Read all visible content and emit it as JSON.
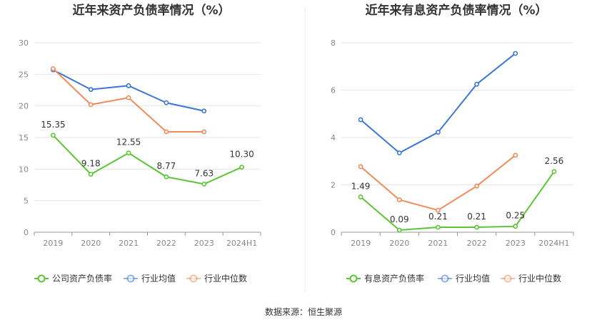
{
  "chart_data": [
    {
      "type": "line",
      "title": "近年来资产负债率情况（%）",
      "xlabel": "",
      "ylabel": "",
      "categories": [
        "2019",
        "2020",
        "2021",
        "2022",
        "2023",
        "2024H1"
      ],
      "ylim": [
        0,
        30
      ],
      "yticks": [
        "0",
        "5",
        "10",
        "15",
        "20",
        "25",
        "30"
      ],
      "grid": true,
      "legend": "bottom",
      "series": [
        {
          "name": "公司资产负债率",
          "color": "#5cc534",
          "values": [
            15.35,
            9.18,
            12.55,
            8.77,
            7.63,
            10.3
          ],
          "labels": [
            "15.35",
            "9.18",
            "12.55",
            "8.77",
            "7.63",
            "10.30"
          ]
        },
        {
          "name": "行业均值",
          "color": "#3a76d8",
          "values": [
            25.7,
            22.6,
            23.2,
            20.5,
            19.2,
            null
          ]
        },
        {
          "name": "行业中位数",
          "color": "#f08c5a",
          "values": [
            25.9,
            20.2,
            21.3,
            15.9,
            15.9,
            null
          ]
        }
      ]
    },
    {
      "type": "line",
      "title": "近年来有息资产负债率情况（%）",
      "xlabel": "",
      "ylabel": "",
      "categories": [
        "2019",
        "2020",
        "2021",
        "2022",
        "2023",
        "2024H1"
      ],
      "ylim": [
        0,
        8
      ],
      "yticks": [
        "0",
        "2",
        "4",
        "6",
        "8"
      ],
      "grid": true,
      "legend": "bottom",
      "series": [
        {
          "name": "有息资产负债率",
          "color": "#5cc534",
          "values": [
            1.49,
            0.09,
            0.21,
            0.21,
            0.25,
            2.56
          ],
          "labels": [
            "1.49",
            "0.09",
            "0.21",
            "0.21",
            "0.25",
            "2.56"
          ]
        },
        {
          "name": "行业均值",
          "color": "#3a76d8",
          "values": [
            4.75,
            3.35,
            4.22,
            6.25,
            7.55,
            null
          ]
        },
        {
          "name": "行业中位数",
          "color": "#f08c5a",
          "values": [
            2.77,
            1.37,
            0.93,
            1.95,
            3.25,
            null
          ]
        }
      ]
    }
  ],
  "source": "数据来源：恒生聚源"
}
